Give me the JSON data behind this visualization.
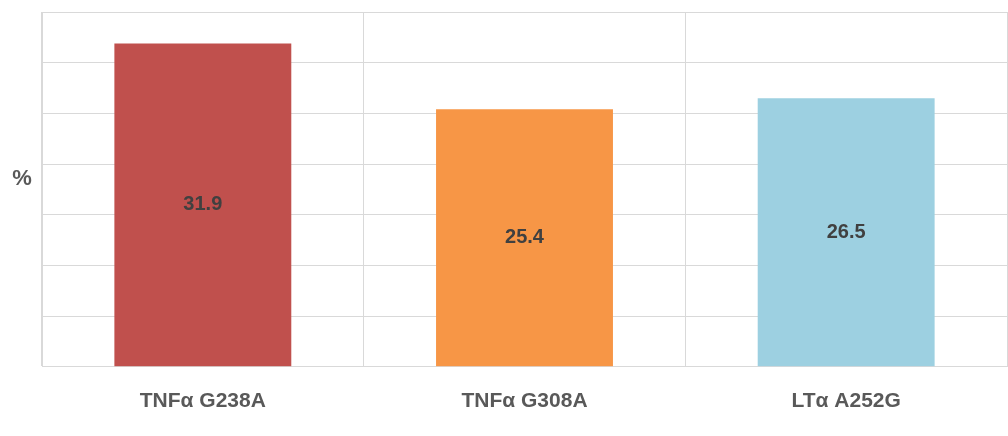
{
  "chart_data": {
    "type": "bar",
    "ylabel": "%",
    "categories": [
      "TNFα G238A",
      "TNFα G308A",
      "LTα A252G"
    ],
    "values": [
      31.9,
      25.4,
      26.5
    ],
    "colors": [
      "#c0504d",
      "#f79646",
      "#9dd0e1"
    ],
    "ylim": [
      0,
      35
    ],
    "yticks": [
      {
        "value": 0,
        "label": null
      },
      {
        "value": 5,
        "label": null
      },
      {
        "value": 10,
        "label": null
      },
      {
        "value": 15,
        "label": null
      },
      {
        "value": 20,
        "label": null
      },
      {
        "value": 25,
        "label": null
      },
      {
        "value": 30,
        "label": null
      },
      {
        "value": 35,
        "label": null
      }
    ],
    "grid": true,
    "tick_labels": "x",
    "data_labels": true,
    "legend": false
  }
}
